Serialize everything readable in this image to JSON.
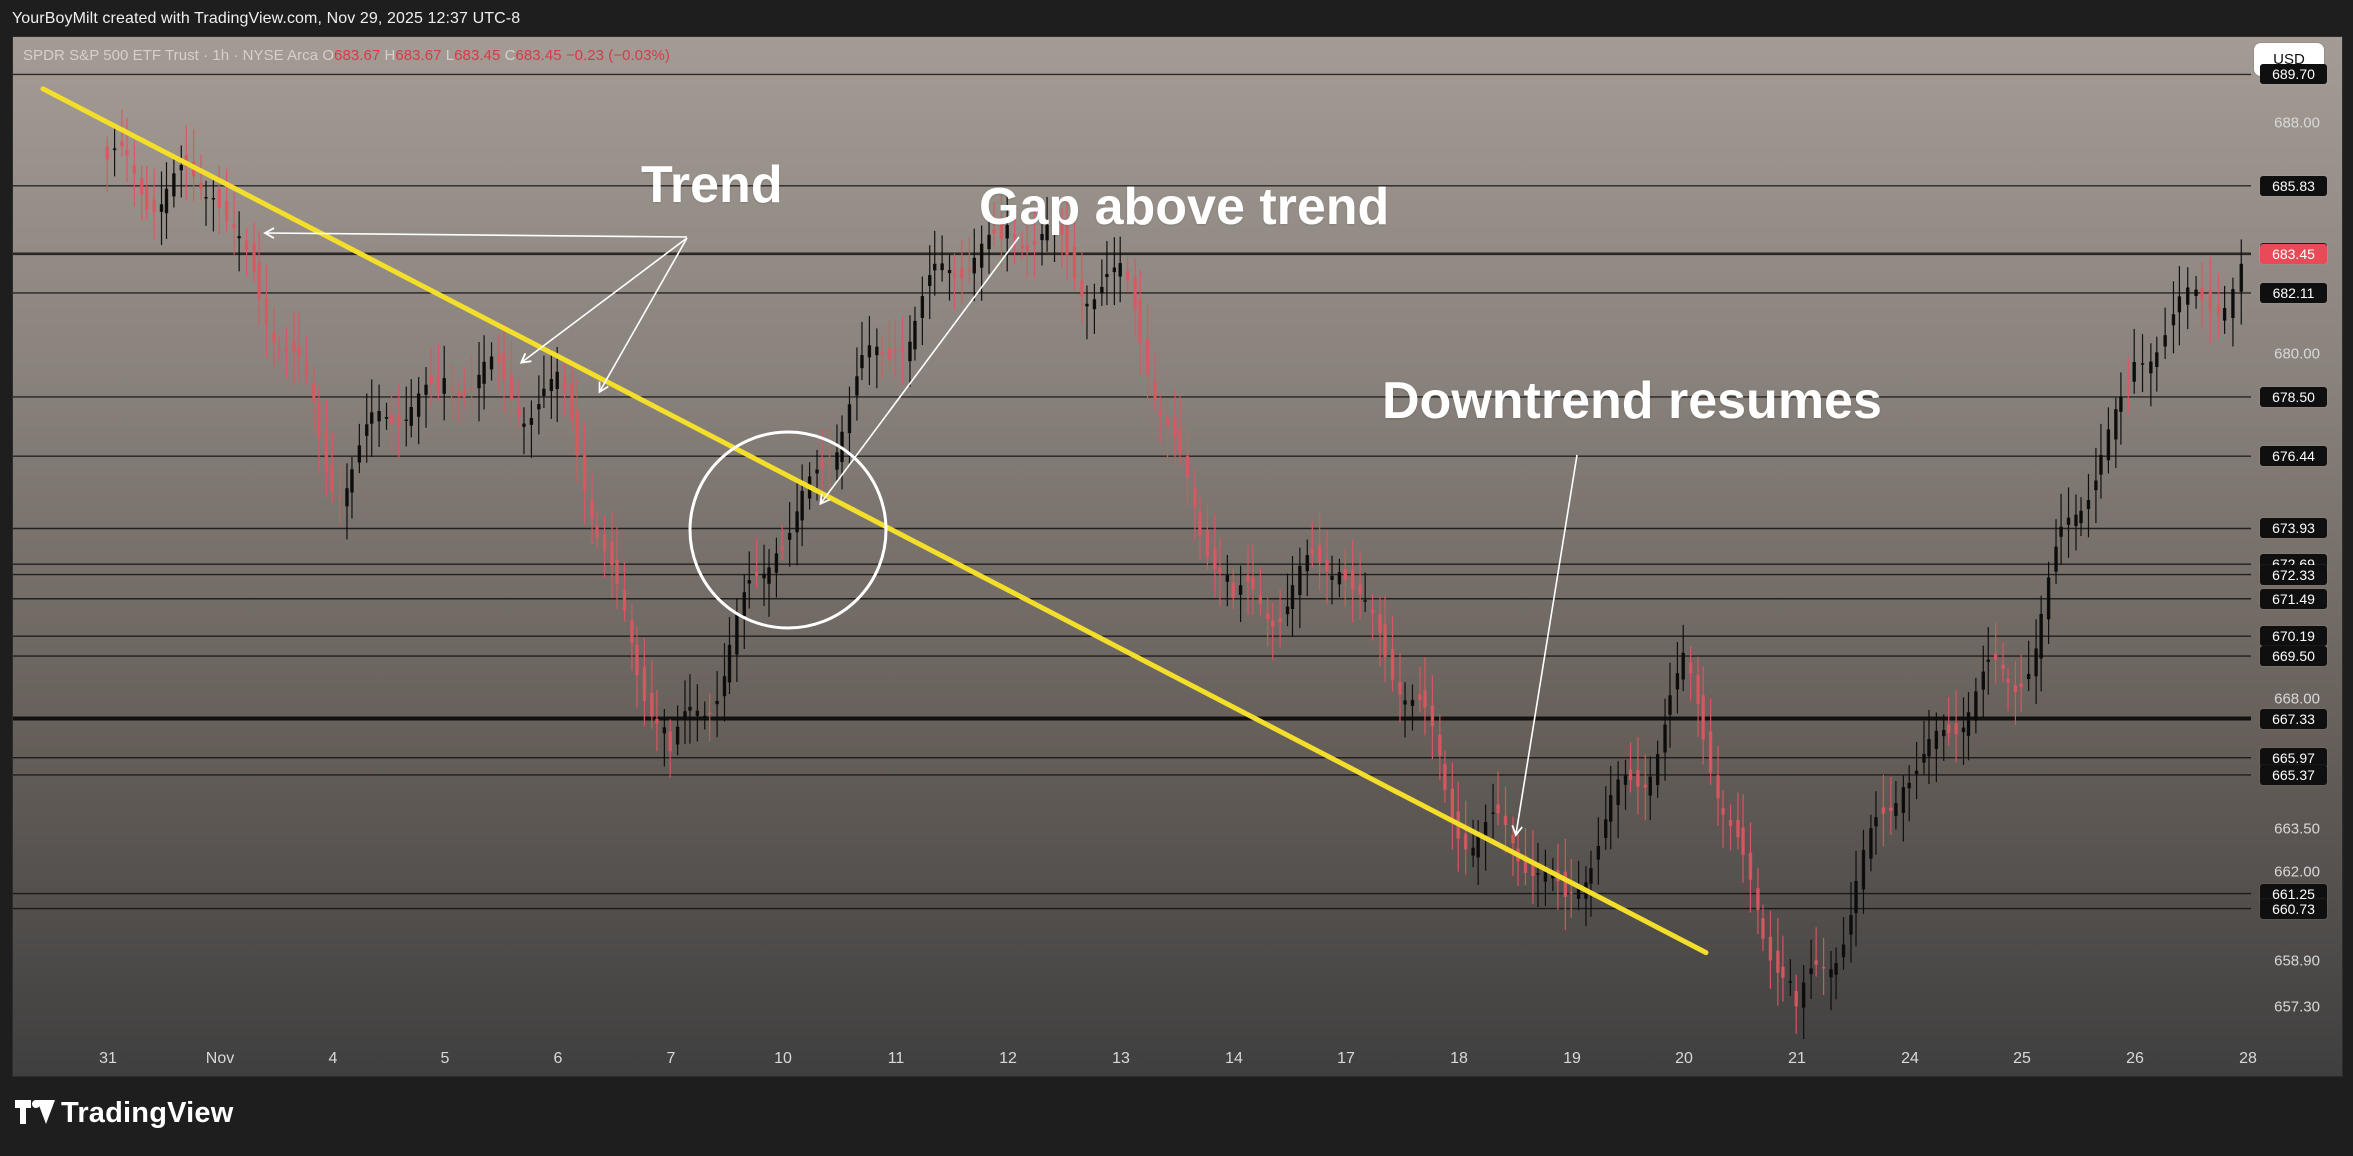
{
  "app": {
    "header_text": "YourBoyMilt created with TradingView.com, Nov 29, 2025 12:37 UTC-8",
    "brand": "TradingView",
    "currency_button": "USD"
  },
  "legend": {
    "symbol": "SPDR S&P 500 ETF Trust · 1h · NYSE Arca",
    "open_label": "O",
    "open_value": "683.67",
    "high_label": "H",
    "high_value": "683.67",
    "low_label": "L",
    "low_value": "683.45",
    "close_label": "C",
    "close_value": "683.45",
    "change_value": "−0.23 (−0.03%)"
  },
  "colors": {
    "trendline": "#f3de2c",
    "bull_candle": "#0b0b0b",
    "bear_candle": "#dc5661",
    "guide_line": "#0d0d0d",
    "annotation": "#ffffff",
    "circle": "#ffffff"
  },
  "annotations": {
    "trend": "Trend",
    "gap": "Gap above trend",
    "resumes": "Downtrend resumes"
  },
  "chart_data": {
    "type": "line",
    "chart_kind": "candlestick",
    "title": "",
    "xlabel": "",
    "ylabel": "",
    "ylim": [
      656.2,
      691.0
    ],
    "x_tick_labels": [
      "31",
      "Nov",
      "4",
      "5",
      "6",
      "7",
      "10",
      "11",
      "12",
      "13",
      "14",
      "17",
      "18",
      "19",
      "20",
      "21",
      "24",
      "25",
      "26",
      "28"
    ],
    "y_tick_labels": [
      "688.00",
      "680.00",
      "668.00",
      "663.50",
      "662.00",
      "658.90",
      "657.30"
    ],
    "series": [
      {
        "name": "",
        "points": [
          {
            "date": "31",
            "close": 686.3
          },
          {
            "date": "Nov",
            "close": 685.6
          },
          {
            "date": "4",
            "close": 676.0
          },
          {
            "date": "5",
            "close": 679.1
          },
          {
            "date": "6",
            "close": 678.5
          },
          {
            "date": "7",
            "close": 665.7
          },
          {
            "date": "10",
            "close": 673.8
          },
          {
            "date": "11",
            "close": 681.0
          },
          {
            "date": "12",
            "close": 684.4
          },
          {
            "date": "13",
            "close": 682.2
          },
          {
            "date": "14",
            "close": 671.0
          },
          {
            "date": "17",
            "close": 672.8
          },
          {
            "date": "18",
            "close": 664.1
          },
          {
            "date": "19",
            "close": 661.2
          },
          {
            "date": "20",
            "close": 668.6
          },
          {
            "date": "21",
            "close": 656.8
          },
          {
            "date": "24",
            "close": 665.8
          },
          {
            "date": "25",
            "close": 669.4
          },
          {
            "date": "26",
            "close": 679.6
          },
          {
            "date": "28",
            "close": 683.45
          }
        ]
      }
    ],
    "reference_levels": [
      "689.70",
      "685.83",
      "683.49",
      "683.45",
      "682.11",
      "678.50",
      "676.44",
      "673.93",
      "672.69",
      "672.33",
      "671.49",
      "670.19",
      "669.50",
      "667.33",
      "665.97",
      "665.37",
      "661.25",
      "660.73"
    ],
    "trendline": {
      "start_date": "31",
      "start_price": 689.2,
      "end_date": "20",
      "end_price": 659.2
    }
  }
}
